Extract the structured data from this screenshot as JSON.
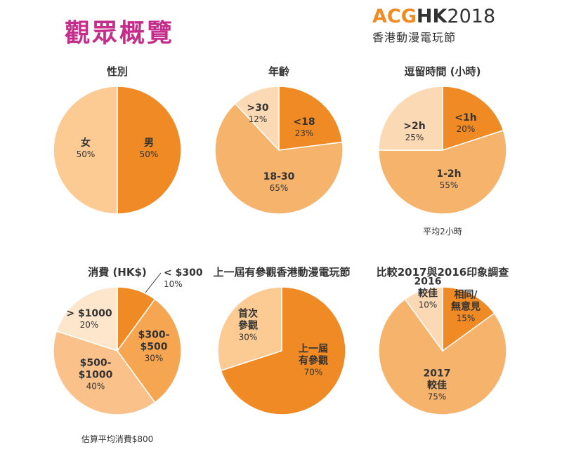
{
  "header": {
    "title": "觀眾概覽",
    "logo": {
      "acg": "ACG",
      "hk": "HK",
      "year": "2018",
      "subtitle": "香港動漫電玩節"
    }
  },
  "chart_data": [
    {
      "type": "pie",
      "title": "性別",
      "slices": [
        {
          "label": "男",
          "value": 50,
          "pct_label": "50%",
          "color": "#f08a25"
        },
        {
          "label": "女",
          "value": 50,
          "pct_label": "50%",
          "color": "#fccb94"
        }
      ],
      "footnote": ""
    },
    {
      "type": "pie",
      "title": "年齡",
      "slices": [
        {
          "label": "<18",
          "value": 23,
          "pct_label": "23%",
          "color": "#f08a25"
        },
        {
          "label": "18-30",
          "value": 65,
          "pct_label": "65%",
          "color": "#f6b36b"
        },
        {
          "label": ">30",
          "value": 12,
          "pct_label": "12%",
          "color": "#fbd9b4"
        }
      ],
      "footnote": ""
    },
    {
      "type": "pie",
      "title": "逗留時間 (小時)",
      "slices": [
        {
          "label": "<1h",
          "value": 20,
          "pct_label": "20%",
          "color": "#f08a25"
        },
        {
          "label": "1-2h",
          "value": 55,
          "pct_label": "55%",
          "color": "#f6b36b"
        },
        {
          "label": ">2h",
          "value": 25,
          "pct_label": "25%",
          "color": "#fbd9b4"
        }
      ],
      "footnote": "平均2小時"
    },
    {
      "type": "pie",
      "title": "消費 (HK$)",
      "slices": [
        {
          "label": "< $300",
          "value": 10,
          "pct_label": "10%",
          "color": "#f08a25"
        },
        {
          "label": "$300-$500",
          "value": 30,
          "pct_label": "30%",
          "color": "#f6a650"
        },
        {
          "label": "$500-$1000",
          "value": 40,
          "pct_label": "40%",
          "color": "#fac28a"
        },
        {
          "label": "> $1000",
          "value": 20,
          "pct_label": "20%",
          "color": "#fde6cc"
        }
      ],
      "footnote": "估算平均消費$800"
    },
    {
      "type": "pie",
      "title": "上一屆有參觀香港動漫電玩節",
      "slices": [
        {
          "label": "上一屆有參觀",
          "value": 70,
          "pct_label": "70%",
          "color": "#f08a25"
        },
        {
          "label": "首次參觀",
          "value": 30,
          "pct_label": "30%",
          "color": "#fccb94"
        }
      ],
      "footnote": ""
    },
    {
      "type": "pie",
      "title": "比較2017與2016印象調查",
      "slices": [
        {
          "label": "相同/無意見",
          "value": 15,
          "pct_label": "15%",
          "color": "#f08a25"
        },
        {
          "label": "2017較佳",
          "value": 75,
          "pct_label": "75%",
          "color": "#f6b36b"
        },
        {
          "label": "2016較佳",
          "value": 10,
          "pct_label": "10%",
          "color": "#fbd9b4"
        }
      ],
      "footnote": ""
    }
  ]
}
